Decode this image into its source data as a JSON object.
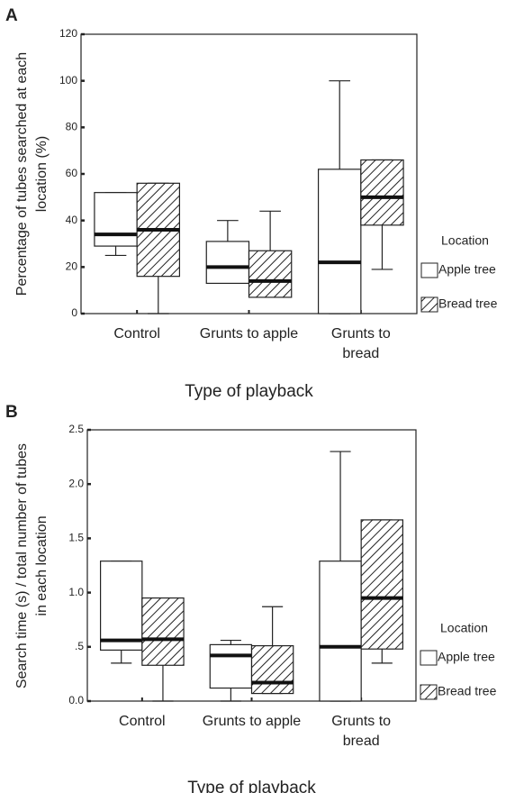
{
  "chart_data": [
    {
      "type": "box",
      "label": "A",
      "ylabel": "Percentage of tubes searched at each location (%)",
      "xlabel": "Type of playback",
      "categories": [
        "Control",
        "Grunts to apple",
        "Grunts to bread"
      ],
      "ylim": [
        0,
        120
      ],
      "yticks": [
        0,
        20,
        40,
        60,
        80,
        100,
        120
      ],
      "legend_title": "Location",
      "series": [
        {
          "name": "Apple tree",
          "color": "#ffffff",
          "hatch": false,
          "values": [
            {
              "low": 25,
              "q1": 29,
              "median": 34,
              "q3": 52,
              "high": 52
            },
            {
              "low": 13,
              "q1": 13,
              "median": 20,
              "q3": 31,
              "high": 40
            },
            {
              "low": 0,
              "q1": 0,
              "median": 22,
              "q3": 62,
              "high": 100
            }
          ]
        },
        {
          "name": "Bread tree",
          "color": "#ffffff",
          "hatch": true,
          "values": [
            {
              "low": 0,
              "q1": 16,
              "median": 36,
              "q3": 56,
              "high": 56
            },
            {
              "low": 7,
              "q1": 7,
              "median": 14,
              "q3": 27,
              "high": 44
            },
            {
              "low": 19,
              "q1": 38,
              "median": 50,
              "q3": 66,
              "high": 66
            }
          ]
        }
      ]
    },
    {
      "type": "box",
      "label": "B",
      "ylabel": "Search time (s) / total number of tubes in each location",
      "xlabel": "Type of playback",
      "categories": [
        "Control",
        "Grunts to apple",
        "Grunts to bread"
      ],
      "ylim": [
        0,
        2.5
      ],
      "yticks": [
        {
          "value": 0,
          "label": "0.0"
        },
        {
          "value": 0.5,
          "label": ".5"
        },
        {
          "value": 1,
          "label": "1.0"
        },
        {
          "value": 1.5,
          "label": "1.5"
        },
        {
          "value": 2,
          "label": "2.0"
        },
        {
          "value": 2.5,
          "label": "2.5"
        }
      ],
      "legend_title": "Location",
      "series": [
        {
          "name": "Apple tree",
          "color": "#ffffff",
          "hatch": false,
          "values": [
            {
              "low": 0.35,
              "q1": 0.47,
              "median": 0.56,
              "q3": 1.29,
              "high": 1.29
            },
            {
              "low": 0,
              "q1": 0.12,
              "median": 0.42,
              "q3": 0.52,
              "high": 0.56
            },
            {
              "low": 0,
              "q1": 0,
              "median": 0.5,
              "q3": 1.29,
              "high": 2.3
            }
          ]
        },
        {
          "name": "Bread tree",
          "color": "#ffffff",
          "hatch": true,
          "values": [
            {
              "low": 0,
              "q1": 0.33,
              "median": 0.57,
              "q3": 0.95,
              "high": 0.95
            },
            {
              "low": 0.07,
              "q1": 0.07,
              "median": 0.17,
              "q3": 0.51,
              "high": 0.87
            },
            {
              "low": 0.35,
              "q1": 0.48,
              "median": 0.95,
              "q3": 1.67,
              "high": 1.67
            }
          ]
        }
      ]
    }
  ]
}
